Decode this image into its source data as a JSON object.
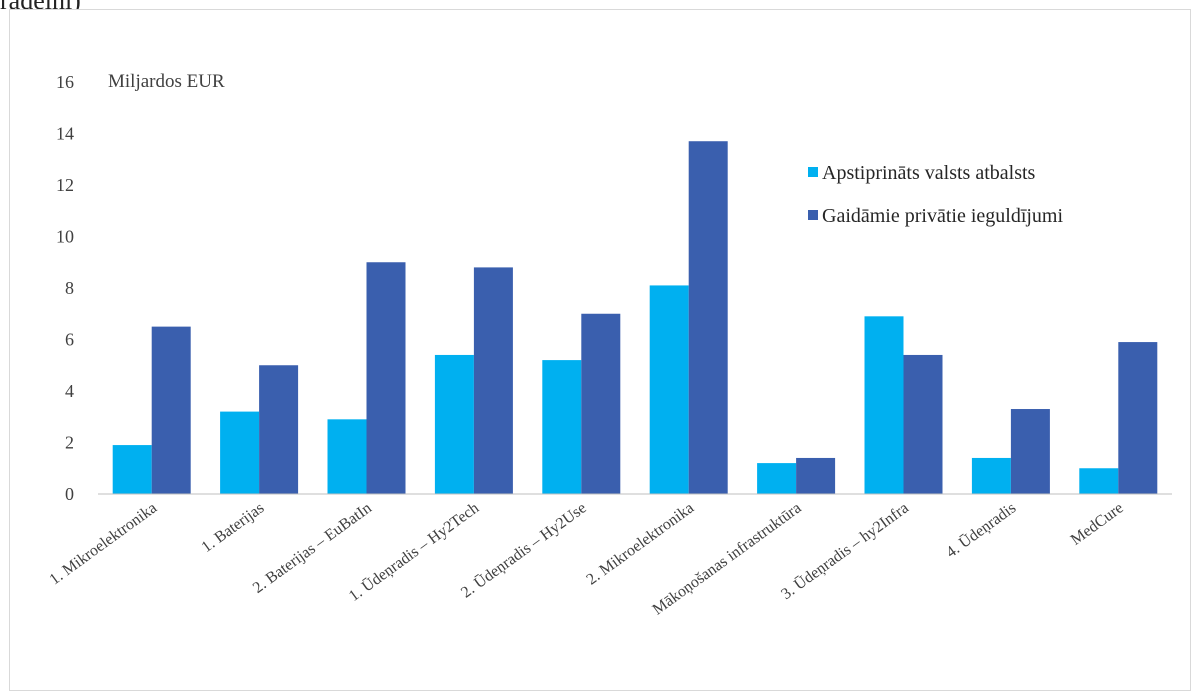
{
  "caption_fragment": "radeini)",
  "chart_data": {
    "type": "bar",
    "unit_label": "Miljardos EUR",
    "categories": [
      "1. Mikroelektronika",
      "1. Baterijas",
      "2. Baterijas – EuBatIn",
      "1. Ūdeņradis – Hy2Tech",
      "2. Ūdeņradis – Hy2Use",
      "2. Mikroelektronika",
      "Mākoņošanas infrastruktūra",
      "3. Ūdeņradis – hy2Infra",
      "4. Ūdeņradis",
      "MedCure"
    ],
    "series": [
      {
        "name": "Apstiprināts valsts atbalsts",
        "color": "#00b0f0",
        "values": [
          1.9,
          3.2,
          2.9,
          5.4,
          5.2,
          8.1,
          1.2,
          6.9,
          1.4,
          1.0
        ]
      },
      {
        "name": "Gaidāmie privātie ieguldījumi",
        "color": "#3a5fae",
        "values": [
          6.5,
          5.0,
          9.0,
          8.8,
          7.0,
          13.7,
          1.4,
          5.4,
          3.3,
          5.9
        ]
      }
    ],
    "ylim": [
      0,
      16
    ],
    "yticks": [
      0,
      2,
      4,
      6,
      8,
      10,
      12,
      14,
      16
    ],
    "grid": false,
    "legend_position": "top-right"
  }
}
